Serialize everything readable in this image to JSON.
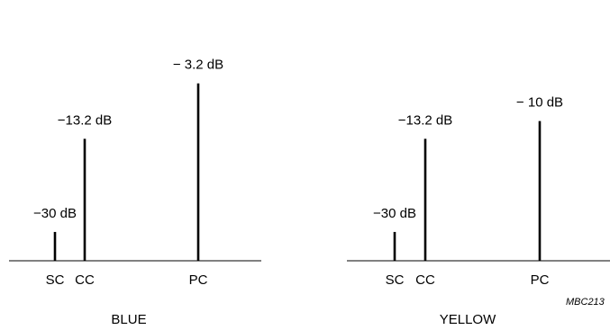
{
  "chart_data": [
    {
      "type": "bar",
      "title": "BLUE",
      "categories": [
        "SC",
        "CC",
        "PC"
      ],
      "values": [
        -30,
        -13.2,
        -3.2
      ],
      "unit": "dB",
      "value_labels": [
        "−30 dB",
        "−13.2 dB",
        "− 3.2 dB"
      ]
    },
    {
      "type": "bar",
      "title": "YELLOW",
      "categories": [
        "SC",
        "CC",
        "PC"
      ],
      "values": [
        -30,
        -13.2,
        -10
      ],
      "unit": "dB",
      "value_labels": [
        "−30 dB",
        "−13.2 dB",
        "− 10 dB"
      ]
    }
  ],
  "figure_ref": "MBC213"
}
